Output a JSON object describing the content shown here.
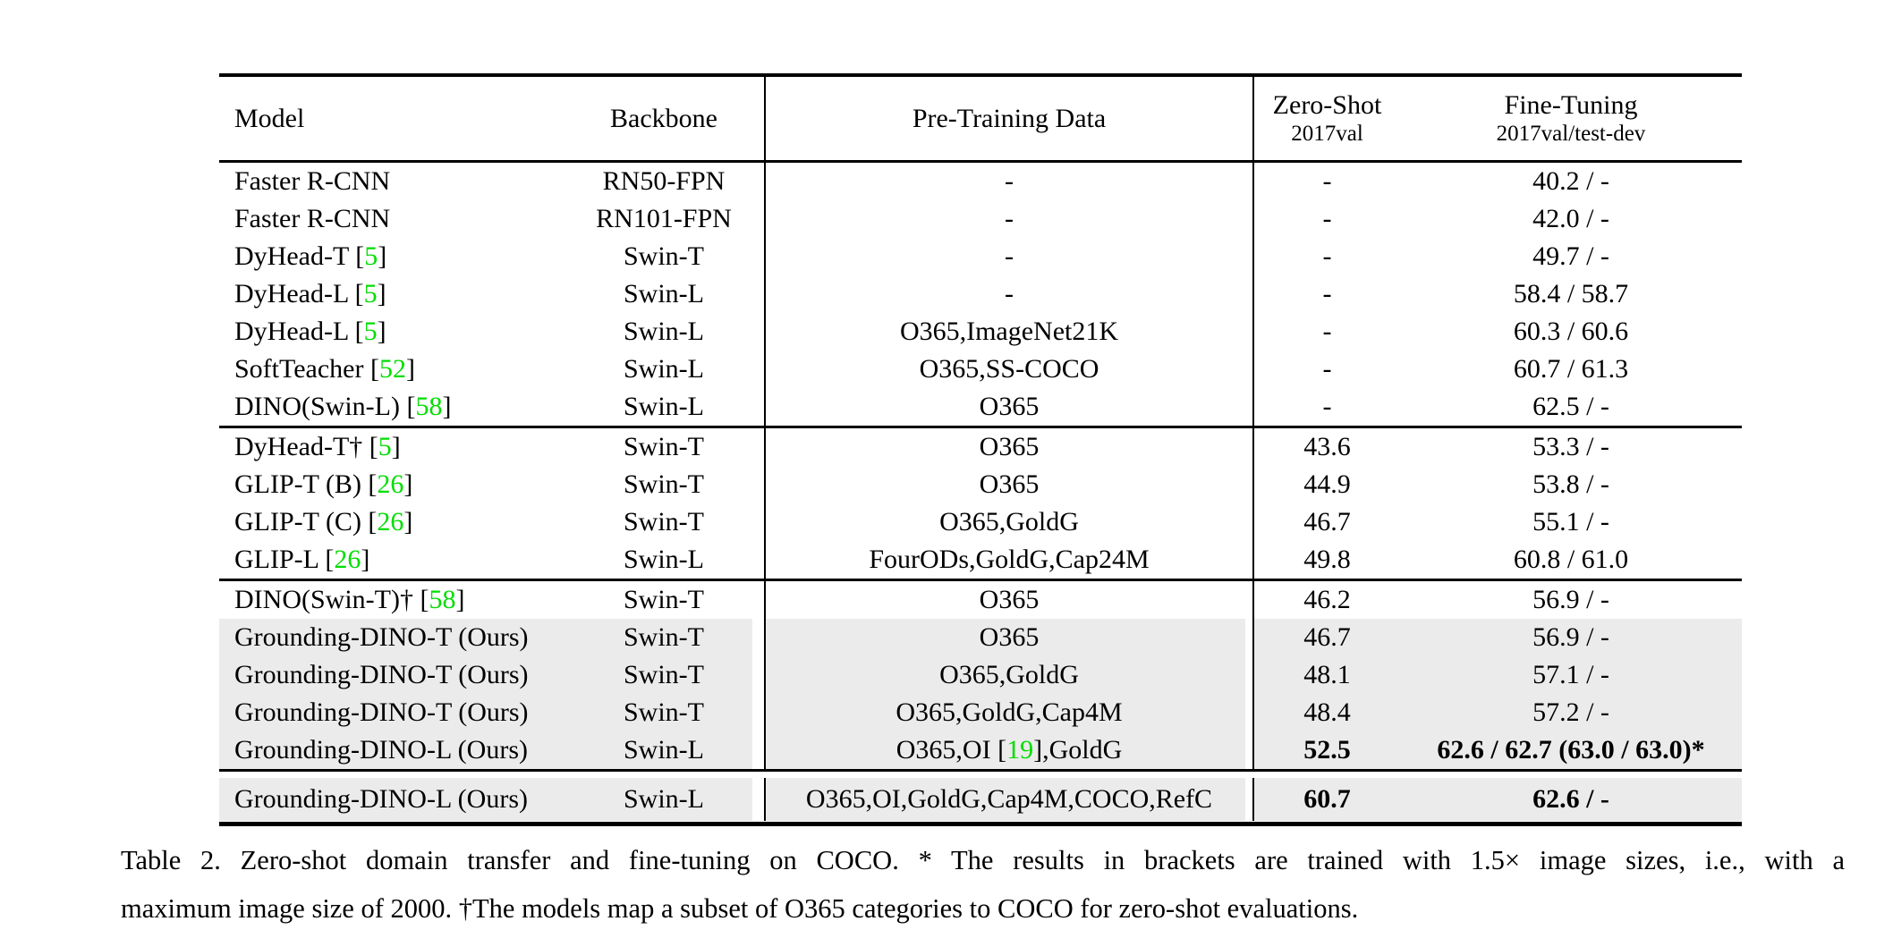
{
  "colors": {
    "citation_green": "#00dd00",
    "row_highlight": "#ebebeb",
    "text": "#000000",
    "background": "#ffffff"
  },
  "table": {
    "header": {
      "model": "Model",
      "backbone": "Backbone",
      "pretrain": "Pre-Training Data",
      "zeroshot_line1": "Zero-Shot",
      "zeroshot_line2": "2017val",
      "finetune_line1": "Fine-Tuning",
      "finetune_line2": "2017val/test-dev"
    },
    "groups": [
      {
        "rows": [
          {
            "model": [
              {
                "text": "Faster R-CNN"
              }
            ],
            "backbone": "RN50-FPN",
            "pretrain": [
              {
                "text": "-"
              }
            ],
            "zeroshot": "-",
            "finetune": "40.2 / -",
            "highlight": false,
            "bold": false
          },
          {
            "model": [
              {
                "text": "Faster R-CNN"
              }
            ],
            "backbone": "RN101-FPN",
            "pretrain": [
              {
                "text": "-"
              }
            ],
            "zeroshot": "-",
            "finetune": "42.0 / -",
            "highlight": false,
            "bold": false
          },
          {
            "model": [
              {
                "text": "DyHead-T ["
              },
              {
                "green": "5"
              },
              {
                "text": "]"
              }
            ],
            "backbone": "Swin-T",
            "pretrain": [
              {
                "text": "-"
              }
            ],
            "zeroshot": "-",
            "finetune": "49.7 / -",
            "highlight": false,
            "bold": false
          },
          {
            "model": [
              {
                "text": "DyHead-L ["
              },
              {
                "green": "5"
              },
              {
                "text": "]"
              }
            ],
            "backbone": "Swin-L",
            "pretrain": [
              {
                "text": "-"
              }
            ],
            "zeroshot": "-",
            "finetune": "58.4 / 58.7",
            "highlight": false,
            "bold": false
          },
          {
            "model": [
              {
                "text": "DyHead-L ["
              },
              {
                "green": "5"
              },
              {
                "text": "]"
              }
            ],
            "backbone": "Swin-L",
            "pretrain": [
              {
                "text": "O365,ImageNet21K"
              }
            ],
            "zeroshot": "-",
            "finetune": "60.3 / 60.6",
            "highlight": false,
            "bold": false
          },
          {
            "model": [
              {
                "text": "SoftTeacher ["
              },
              {
                "green": "52"
              },
              {
                "text": "]"
              }
            ],
            "backbone": "Swin-L",
            "pretrain": [
              {
                "text": "O365,SS-COCO"
              }
            ],
            "zeroshot": "-",
            "finetune": "60.7 / 61.3",
            "highlight": false,
            "bold": false
          },
          {
            "model": [
              {
                "text": "DINO(Swin-L) ["
              },
              {
                "green": "58"
              },
              {
                "text": "]"
              }
            ],
            "backbone": "Swin-L",
            "pretrain": [
              {
                "text": "O365"
              }
            ],
            "zeroshot": "-",
            "finetune": "62.5 / -",
            "highlight": false,
            "bold": false
          }
        ]
      },
      {
        "rows": [
          {
            "model": [
              {
                "text": "DyHead-T† ["
              },
              {
                "green": "5"
              },
              {
                "text": "]"
              }
            ],
            "backbone": "Swin-T",
            "pretrain": [
              {
                "text": "O365"
              }
            ],
            "zeroshot": "43.6",
            "finetune": "53.3 / -",
            "highlight": false,
            "bold": false
          },
          {
            "model": [
              {
                "text": "GLIP-T (B) ["
              },
              {
                "green": "26"
              },
              {
                "text": "]"
              }
            ],
            "backbone": "Swin-T",
            "pretrain": [
              {
                "text": "O365"
              }
            ],
            "zeroshot": "44.9",
            "finetune": "53.8 / -",
            "highlight": false,
            "bold": false
          },
          {
            "model": [
              {
                "text": "GLIP-T (C) ["
              },
              {
                "green": "26"
              },
              {
                "text": "]"
              }
            ],
            "backbone": "Swin-T",
            "pretrain": [
              {
                "text": "O365,GoldG"
              }
            ],
            "zeroshot": "46.7",
            "finetune": "55.1 / -",
            "highlight": false,
            "bold": false
          },
          {
            "model": [
              {
                "text": "GLIP-L ["
              },
              {
                "green": "26"
              },
              {
                "text": "]"
              }
            ],
            "backbone": "Swin-L",
            "pretrain": [
              {
                "text": "FourODs,GoldG,Cap24M"
              }
            ],
            "zeroshot": "49.8",
            "finetune": "60.8 / 61.0",
            "highlight": false,
            "bold": false
          }
        ]
      },
      {
        "rows": [
          {
            "model": [
              {
                "text": "DINO(Swin-T)† ["
              },
              {
                "green": "58"
              },
              {
                "text": "]"
              }
            ],
            "backbone": "Swin-T",
            "pretrain": [
              {
                "text": "O365"
              }
            ],
            "zeroshot": "46.2",
            "finetune": "56.9 / -",
            "highlight": false,
            "bold": false
          },
          {
            "model": [
              {
                "text": "Grounding-DINO-T (Ours)"
              }
            ],
            "backbone": "Swin-T",
            "pretrain": [
              {
                "text": "O365"
              }
            ],
            "zeroshot": "46.7",
            "finetune": "56.9 / -",
            "highlight": true,
            "bold": false
          },
          {
            "model": [
              {
                "text": "Grounding-DINO-T (Ours)"
              }
            ],
            "backbone": "Swin-T",
            "pretrain": [
              {
                "text": "O365,GoldG"
              }
            ],
            "zeroshot": "48.1",
            "finetune": "57.1 / -",
            "highlight": true,
            "bold": false
          },
          {
            "model": [
              {
                "text": "Grounding-DINO-T (Ours)"
              }
            ],
            "backbone": "Swin-T",
            "pretrain": [
              {
                "text": "O365,GoldG,Cap4M"
              }
            ],
            "zeroshot": "48.4",
            "finetune": "57.2 / -",
            "highlight": true,
            "bold": false
          },
          {
            "model": [
              {
                "text": "Grounding-DINO-L (Ours)"
              }
            ],
            "backbone": "Swin-L",
            "pretrain": [
              {
                "text": "O365,OI ["
              },
              {
                "green": "19"
              },
              {
                "text": "],GoldG"
              }
            ],
            "zeroshot": "52.5",
            "finetune": "62.6 / 62.7 (63.0 / 63.0)*",
            "highlight": true,
            "bold": true
          }
        ]
      },
      {
        "rows": [
          {
            "model": [
              {
                "text": "Grounding-DINO-L (Ours)"
              }
            ],
            "backbone": "Swin-L",
            "pretrain": [
              {
                "text": "O365,OI,GoldG,Cap4M,COCO,RefC"
              }
            ],
            "zeroshot": "60.7",
            "finetune": "62.6 / -",
            "highlight": true,
            "bold": true
          }
        ]
      }
    ]
  },
  "caption": {
    "line1": "Table 2.  Zero-shot domain transfer and fine-tuning on COCO. * The results in brackets are trained with 1.5× image sizes, i.e., with a",
    "line2": "maximum image size of 2000. †The models map a subset of O365 categories to COCO for zero-shot evaluations."
  }
}
